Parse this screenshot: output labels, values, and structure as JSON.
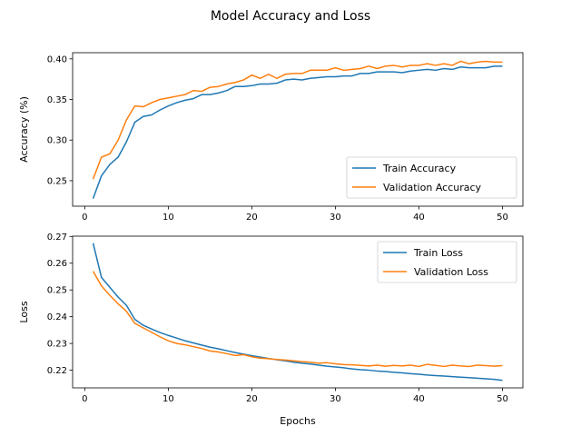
{
  "title": "Model Accuracy and Loss",
  "chart_data": [
    {
      "type": "line",
      "title": "",
      "xlabel": "",
      "ylabel": "Accuracy (%)",
      "xlim": [
        -1.45,
        52.45
      ],
      "ylim": [
        0.2186,
        0.4076
      ],
      "xticks": [
        0,
        10,
        20,
        30,
        40,
        50
      ],
      "yticks": [
        0.25,
        0.3,
        0.35,
        0.4
      ],
      "ytick_labels": [
        "0.25",
        "0.30",
        "0.35",
        "0.40"
      ],
      "grid": false,
      "legend_position": "lower-right",
      "x": [
        1,
        2,
        3,
        4,
        5,
        6,
        7,
        8,
        9,
        10,
        11,
        12,
        13,
        14,
        15,
        16,
        17,
        18,
        19,
        20,
        21,
        22,
        23,
        24,
        25,
        26,
        27,
        28,
        29,
        30,
        31,
        32,
        33,
        34,
        35,
        36,
        37,
        38,
        39,
        40,
        41,
        42,
        43,
        44,
        45,
        46,
        47,
        48,
        49,
        50
      ],
      "series": [
        {
          "name": "Train Accuracy",
          "color": "#1f77b4",
          "values": [
            0.228,
            0.256,
            0.27,
            0.279,
            0.298,
            0.322,
            0.329,
            0.331,
            0.337,
            0.342,
            0.346,
            0.349,
            0.351,
            0.356,
            0.356,
            0.358,
            0.361,
            0.366,
            0.366,
            0.367,
            0.369,
            0.369,
            0.37,
            0.374,
            0.375,
            0.374,
            0.376,
            0.377,
            0.378,
            0.378,
            0.379,
            0.379,
            0.382,
            0.382,
            0.384,
            0.384,
            0.384,
            0.383,
            0.385,
            0.386,
            0.387,
            0.386,
            0.388,
            0.387,
            0.39,
            0.389,
            0.389,
            0.389,
            0.391,
            0.391
          ]
        },
        {
          "name": "Validation Accuracy",
          "color": "#ff7f0e",
          "values": [
            0.252,
            0.279,
            0.283,
            0.3,
            0.325,
            0.342,
            0.341,
            0.346,
            0.35,
            0.352,
            0.354,
            0.356,
            0.361,
            0.36,
            0.365,
            0.366,
            0.369,
            0.371,
            0.374,
            0.38,
            0.376,
            0.381,
            0.376,
            0.381,
            0.382,
            0.382,
            0.386,
            0.386,
            0.386,
            0.389,
            0.386,
            0.387,
            0.388,
            0.391,
            0.388,
            0.391,
            0.392,
            0.39,
            0.392,
            0.392,
            0.394,
            0.392,
            0.394,
            0.392,
            0.397,
            0.394,
            0.396,
            0.397,
            0.396,
            0.396
          ]
        }
      ]
    },
    {
      "type": "line",
      "title": "",
      "xlabel": "Epochs",
      "ylabel": "Loss",
      "xlim": [
        -1.45,
        52.45
      ],
      "ylim": [
        0.2134,
        0.2701
      ],
      "xticks": [
        0,
        10,
        20,
        30,
        40,
        50
      ],
      "yticks": [
        0.22,
        0.23,
        0.24,
        0.25,
        0.26,
        0.27
      ],
      "ytick_labels": [
        "0.22",
        "0.23",
        "0.24",
        "0.25",
        "0.26",
        "0.27"
      ],
      "grid": false,
      "legend_position": "upper-right",
      "x": [
        1,
        2,
        3,
        4,
        5,
        6,
        7,
        8,
        9,
        10,
        11,
        12,
        13,
        14,
        15,
        16,
        17,
        18,
        19,
        20,
        21,
        22,
        23,
        24,
        25,
        26,
        27,
        28,
        29,
        30,
        31,
        32,
        33,
        34,
        35,
        36,
        37,
        38,
        39,
        40,
        41,
        42,
        43,
        44,
        45,
        46,
        47,
        48,
        49,
        50
      ],
      "series": [
        {
          "name": "Train Loss",
          "color": "#1f77b4",
          "values": [
            0.2675,
            0.2547,
            0.251,
            0.2473,
            0.2442,
            0.239,
            0.2368,
            0.2354,
            0.2341,
            0.233,
            0.232,
            0.231,
            0.2302,
            0.2294,
            0.2286,
            0.228,
            0.2273,
            0.2266,
            0.226,
            0.2254,
            0.2249,
            0.2244,
            0.2239,
            0.2235,
            0.223,
            0.2226,
            0.2223,
            0.2219,
            0.2215,
            0.2212,
            0.2209,
            0.2205,
            0.2202,
            0.22,
            0.2197,
            0.2195,
            0.2192,
            0.219,
            0.2187,
            0.2185,
            0.2182,
            0.218,
            0.2178,
            0.2176,
            0.2174,
            0.2172,
            0.217,
            0.2168,
            0.2166,
            0.2162
          ]
        },
        {
          "name": "Validation Loss",
          "color": "#ff7f0e",
          "values": [
            0.257,
            0.2515,
            0.248,
            0.2448,
            0.242,
            0.2375,
            0.2358,
            0.2342,
            0.2325,
            0.231,
            0.23,
            0.2295,
            0.2288,
            0.2281,
            0.2272,
            0.2268,
            0.2262,
            0.2255,
            0.2258,
            0.225,
            0.2245,
            0.2243,
            0.224,
            0.2238,
            0.2235,
            0.2232,
            0.223,
            0.2226,
            0.2228,
            0.2224,
            0.2221,
            0.222,
            0.2218,
            0.2216,
            0.2219,
            0.2215,
            0.2218,
            0.2216,
            0.2219,
            0.2214,
            0.2222,
            0.2218,
            0.2214,
            0.2219,
            0.2216,
            0.2214,
            0.2219,
            0.2217,
            0.2215,
            0.2217
          ]
        }
      ]
    }
  ]
}
